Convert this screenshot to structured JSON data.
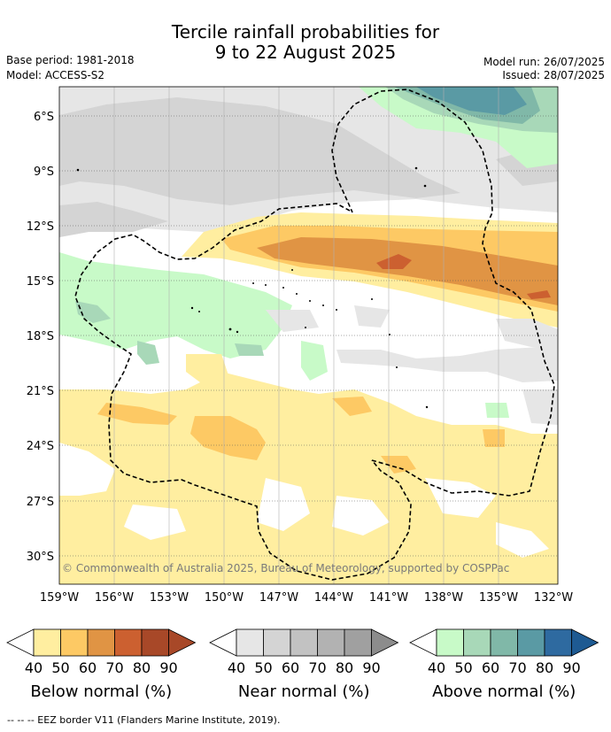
{
  "title_line1": "Tercile rainfall probabilities for",
  "title_line2": "9 to 22 August 2025",
  "base_period": "Base period: 1981-2018",
  "model": "Model: ACCESS-S2",
  "model_run": "Model run: 26/07/2025",
  "issued": "Issued: 28/07/2025",
  "lat_labels": [
    "6°S",
    "9°S",
    "12°S",
    "15°S",
    "18°S",
    "21°S",
    "24°S",
    "27°S",
    "30°S"
  ],
  "lon_labels": [
    "159°W",
    "156°W",
    "153°W",
    "150°W",
    "147°W",
    "144°W",
    "141°W",
    "138°W",
    "135°W",
    "132°W"
  ],
  "copyright": "© Commonwealth of Australia 2025, Bureau of Meteorology, supported by COSPPac",
  "colorbars": [
    {
      "title": "Below normal (%)",
      "ticks": [
        "40",
        "50",
        "60",
        "70",
        "80",
        "90"
      ],
      "colors": [
        "#ffeea0",
        "#fdc964",
        "#e09444",
        "#cc6030",
        "#a84828",
        "#a84828"
      ]
    },
    {
      "title": "Near normal (%)",
      "ticks": [
        "40",
        "50",
        "60",
        "70",
        "80",
        "90"
      ],
      "colors": [
        "#e6e6e6",
        "#d4d4d4",
        "#c2c2c2",
        "#b2b2b2",
        "#a0a0a0",
        "#8c8c8c"
      ]
    },
    {
      "title": "Above normal (%)",
      "ticks": [
        "40",
        "50",
        "60",
        "70",
        "80",
        "90"
      ],
      "colors": [
        "#c8fac8",
        "#a8d8b8",
        "#80b8a8",
        "#5a9aa4",
        "#2e6aa0",
        "#1e5a92"
      ]
    }
  ],
  "footnote": "--  --  -- EEZ border V11 (Flanders Marine Institute, 2019)."
}
